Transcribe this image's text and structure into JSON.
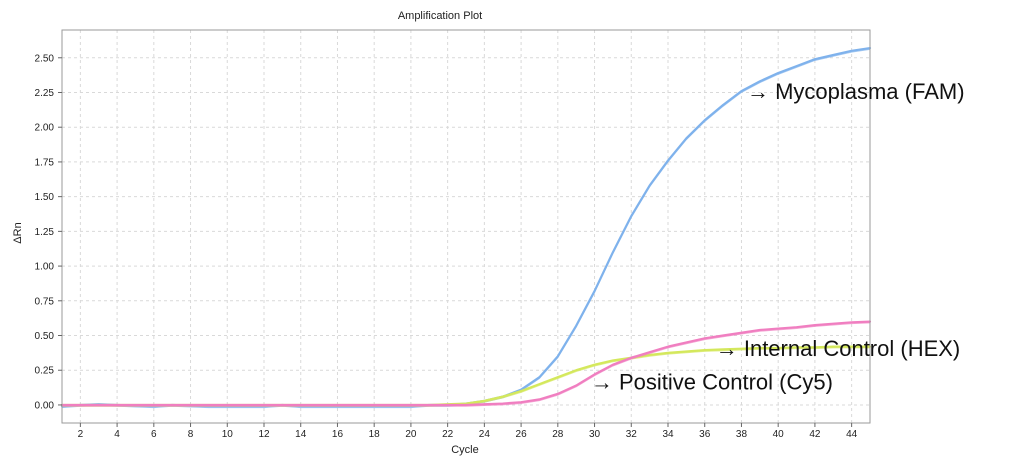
{
  "chart_data": {
    "type": "line",
    "title": "Amplification Plot",
    "xlabel": "Cycle",
    "ylabel": "ΔRn",
    "xlim": [
      1,
      45
    ],
    "ylim": [
      -0.13,
      2.7
    ],
    "x_ticks": [
      2,
      4,
      6,
      8,
      10,
      12,
      14,
      16,
      18,
      20,
      22,
      24,
      26,
      28,
      30,
      32,
      34,
      36,
      38,
      40,
      42,
      44
    ],
    "y_ticks": [
      "0.00",
      "0.25",
      "0.50",
      "0.75",
      "1.00",
      "1.25",
      "1.50",
      "1.75",
      "2.00",
      "2.25",
      "2.50"
    ],
    "grid": true,
    "x": [
      1,
      2,
      3,
      4,
      5,
      6,
      7,
      8,
      9,
      10,
      11,
      12,
      13,
      14,
      15,
      16,
      17,
      18,
      19,
      20,
      21,
      22,
      23,
      24,
      25,
      26,
      27,
      28,
      29,
      30,
      31,
      32,
      33,
      34,
      35,
      36,
      37,
      38,
      39,
      40,
      41,
      42,
      43,
      44,
      45
    ],
    "series": [
      {
        "color": "#7fb2ec",
        "values": [
          -0.01,
          0.0,
          0.005,
          0.0,
          -0.005,
          -0.01,
          0.0,
          -0.005,
          -0.01,
          -0.01,
          -0.01,
          -0.01,
          0.0,
          -0.01,
          -0.01,
          -0.01,
          -0.01,
          -0.01,
          -0.01,
          -0.01,
          0.0,
          0.0,
          0.01,
          0.03,
          0.06,
          0.11,
          0.2,
          0.35,
          0.57,
          0.82,
          1.1,
          1.36,
          1.58,
          1.76,
          1.92,
          2.05,
          2.16,
          2.26,
          2.33,
          2.39,
          2.44,
          2.49,
          2.52,
          2.55,
          2.57
        ]
      },
      {
        "color": "#d4e85c",
        "values": [
          0.0,
          0.0,
          0.0,
          0.0,
          0.0,
          0.0,
          0.0,
          0.0,
          0.0,
          0.0,
          0.0,
          0.0,
          0.0,
          0.0,
          0.0,
          0.0,
          0.0,
          0.0,
          0.0,
          0.0,
          0.0,
          0.005,
          0.01,
          0.03,
          0.06,
          0.1,
          0.15,
          0.2,
          0.25,
          0.29,
          0.32,
          0.34,
          0.36,
          0.375,
          0.385,
          0.395,
          0.4,
          0.405,
          0.41,
          0.41,
          0.415,
          0.415,
          0.42,
          0.42,
          0.42
        ]
      },
      {
        "color": "#f07ec0",
        "values": [
          0.0,
          0.0,
          0.0,
          0.0,
          0.0,
          0.0,
          0.0,
          0.0,
          0.0,
          0.0,
          0.0,
          0.0,
          0.0,
          0.0,
          0.0,
          0.0,
          0.0,
          0.0,
          0.0,
          0.0,
          0.0,
          0.0,
          0.0,
          0.005,
          0.01,
          0.02,
          0.04,
          0.08,
          0.14,
          0.22,
          0.29,
          0.34,
          0.38,
          0.42,
          0.45,
          0.48,
          0.5,
          0.52,
          0.54,
          0.55,
          0.56,
          0.575,
          0.585,
          0.595,
          0.6
        ]
      }
    ],
    "annotations": [
      {
        "text": "→ Mycoplasma (FAM)",
        "anchor_x": 38.3,
        "anchor_y": 2.26
      },
      {
        "text": "→ Internal Control (HEX)",
        "anchor_x": 36.6,
        "anchor_y": 0.41
      },
      {
        "text": "→ Positive Control (Cy5)",
        "anchor_x": 29.8,
        "anchor_y": 0.17
      }
    ]
  }
}
